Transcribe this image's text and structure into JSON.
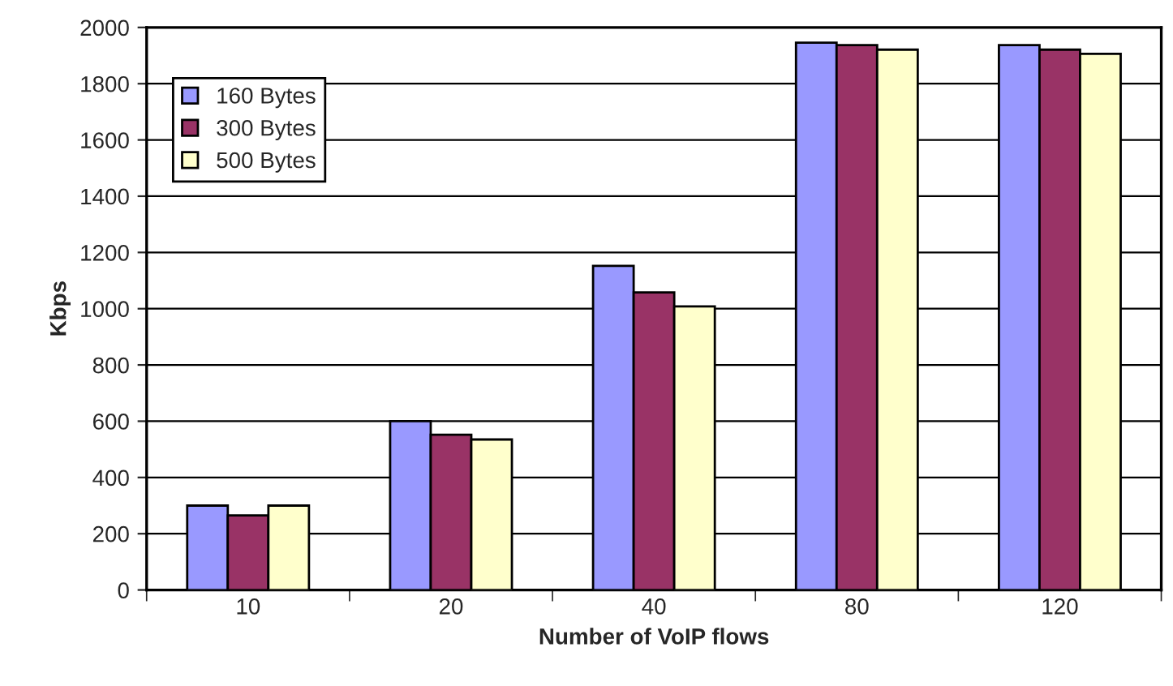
{
  "chart_data": {
    "type": "bar",
    "xlabel": "Number of VoIP flows",
    "ylabel": "Kbps",
    "categories": [
      "10",
      "20",
      "40",
      "80",
      "120"
    ],
    "series": [
      {
        "name": "160 Bytes",
        "color": "#9999ff",
        "values": [
          300,
          600,
          1152,
          1946,
          1937
        ]
      },
      {
        "name": "300 Bytes",
        "color": "#993366",
        "values": [
          265,
          552,
          1058,
          1937,
          1921
        ]
      },
      {
        "name": "500 Bytes",
        "color": "#ffffcc",
        "values": [
          300,
          535,
          1008,
          1921,
          1906
        ]
      }
    ],
    "ylim": [
      0,
      2000
    ],
    "yticks": [
      0,
      200,
      400,
      600,
      800,
      1000,
      1200,
      1400,
      1600,
      1800,
      2000
    ],
    "grid": "y",
    "legend": "top left"
  }
}
